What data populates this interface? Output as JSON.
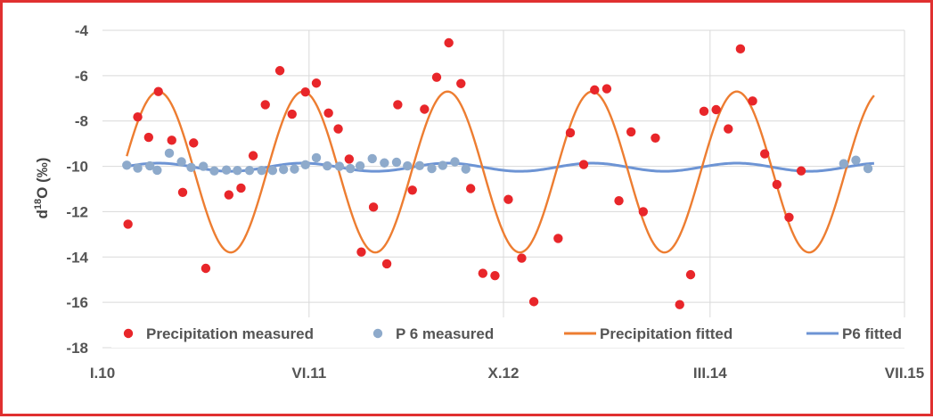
{
  "chart_data": {
    "type": "scatter",
    "title": "",
    "ylabel_main": "d",
    "ylabel_sup": "18",
    "ylabel_rest": "O (‰)",
    "ylim": [
      -18,
      -4
    ],
    "y_ticks": [
      -4,
      -6,
      -8,
      -10,
      -12,
      -14,
      -16,
      -18
    ],
    "x_ticks": [
      "I.10",
      "VI.11",
      "X.12",
      "III.14",
      "VII.15"
    ],
    "x_unit": "months since I.10",
    "xlim": [
      0,
      66
    ],
    "x_tick_positions": [
      0,
      17,
      33,
      50,
      66
    ],
    "grid": true,
    "legend_position": "bottom",
    "colors": {
      "precip_measured": "#e8262a",
      "p6_measured": "#8eaacb",
      "precip_fitted": "#ed7d31",
      "p6_fitted": "#6d94d4",
      "frame": "#e03030"
    },
    "legend": [
      {
        "label": "Precipitation measured",
        "kind": "dot",
        "color_key": "precip_measured"
      },
      {
        "label": "P 6 measured",
        "kind": "dot",
        "color_key": "p6_measured"
      },
      {
        "label": "Precipitation fitted",
        "kind": "line",
        "color_key": "precip_fitted"
      },
      {
        "label": "P6 fitted",
        "kind": "line",
        "color_key": "p6_fitted"
      }
    ],
    "series": [
      {
        "name": "Precipitation measured",
        "kind": "scatter",
        "color_key": "precip_measured",
        "points": [
          [
            2.1,
            -12.55
          ],
          [
            2.9,
            -7.82
          ],
          [
            3.8,
            -8.72
          ],
          [
            4.6,
            -6.7
          ],
          [
            5.7,
            -8.85
          ],
          [
            6.6,
            -11.15
          ],
          [
            7.5,
            -8.97
          ],
          [
            8.5,
            -14.5
          ],
          [
            10.4,
            -11.26
          ],
          [
            11.4,
            -10.96
          ],
          [
            12.4,
            -9.53
          ],
          [
            13.4,
            -7.28
          ],
          [
            14.6,
            -5.78
          ],
          [
            15.6,
            -7.7
          ],
          [
            16.7,
            -6.72
          ],
          [
            17.6,
            -6.33
          ],
          [
            18.6,
            -7.65
          ],
          [
            19.4,
            -8.35
          ],
          [
            20.3,
            -9.68
          ],
          [
            21.3,
            -13.78
          ],
          [
            22.3,
            -11.8
          ],
          [
            23.4,
            -14.3
          ],
          [
            24.3,
            -7.28
          ],
          [
            25.5,
            -11.05
          ],
          [
            26.5,
            -7.48
          ],
          [
            27.5,
            -6.07
          ],
          [
            28.5,
            -4.55
          ],
          [
            29.5,
            -6.35
          ],
          [
            30.3,
            -10.98
          ],
          [
            31.3,
            -14.72
          ],
          [
            32.3,
            -14.82
          ],
          [
            33.4,
            -11.46
          ],
          [
            34.5,
            -14.05
          ],
          [
            35.5,
            -15.97
          ],
          [
            37.5,
            -13.18
          ],
          [
            38.5,
            -8.52
          ],
          [
            39.6,
            -9.92
          ],
          [
            40.5,
            -6.63
          ],
          [
            41.5,
            -6.58
          ],
          [
            42.5,
            -11.52
          ],
          [
            43.5,
            -8.48
          ],
          [
            44.5,
            -12.0
          ],
          [
            45.5,
            -8.75
          ],
          [
            47.5,
            -16.1
          ],
          [
            48.4,
            -14.78
          ],
          [
            49.5,
            -7.57
          ],
          [
            50.5,
            -7.5
          ],
          [
            51.5,
            -8.35
          ],
          [
            52.5,
            -4.82
          ],
          [
            53.5,
            -7.12
          ],
          [
            54.5,
            -9.45
          ],
          [
            55.5,
            -10.8
          ],
          [
            56.5,
            -12.25
          ],
          [
            57.5,
            -10.2
          ]
        ]
      },
      {
        "name": "P 6 measured",
        "kind": "scatter",
        "color_key": "p6_measured",
        "points": [
          [
            2.0,
            -9.95
          ],
          [
            2.9,
            -10.08
          ],
          [
            3.9,
            -9.98
          ],
          [
            4.5,
            -10.17
          ],
          [
            5.5,
            -9.42
          ],
          [
            6.5,
            -9.8
          ],
          [
            7.3,
            -10.05
          ],
          [
            8.3,
            -10.0
          ],
          [
            9.2,
            -10.2
          ],
          [
            10.2,
            -10.16
          ],
          [
            11.1,
            -10.18
          ],
          [
            12.1,
            -10.18
          ],
          [
            13.1,
            -10.18
          ],
          [
            14.0,
            -10.18
          ],
          [
            14.9,
            -10.14
          ],
          [
            15.8,
            -10.12
          ],
          [
            16.7,
            -9.93
          ],
          [
            17.6,
            -9.62
          ],
          [
            18.5,
            -9.98
          ],
          [
            19.5,
            -10.0
          ],
          [
            20.4,
            -10.1
          ],
          [
            21.2,
            -9.98
          ],
          [
            22.2,
            -9.66
          ],
          [
            23.2,
            -9.85
          ],
          [
            24.2,
            -9.82
          ],
          [
            25.1,
            -9.98
          ],
          [
            26.1,
            -9.97
          ],
          [
            27.1,
            -10.1
          ],
          [
            28.0,
            -9.96
          ],
          [
            29.0,
            -9.8
          ],
          [
            29.9,
            -10.12
          ],
          [
            61.0,
            -9.88
          ],
          [
            62.0,
            -9.73
          ],
          [
            63.0,
            -10.1
          ]
        ]
      },
      {
        "name": "Precipitation fitted",
        "kind": "line",
        "color_key": "precip_fitted",
        "amplitude": 3.55,
        "mean": -10.25,
        "period": 11.9,
        "peak_x": 4.6,
        "x_range": [
          2.0,
          63.5
        ]
      },
      {
        "name": "P6 fitted",
        "kind": "line",
        "color_key": "p6_fitted",
        "amplitude": 0.18,
        "mean": -10.04,
        "period": 11.9,
        "peak_x": 4.6,
        "x_range": [
          2.0,
          63.5
        ]
      }
    ]
  }
}
